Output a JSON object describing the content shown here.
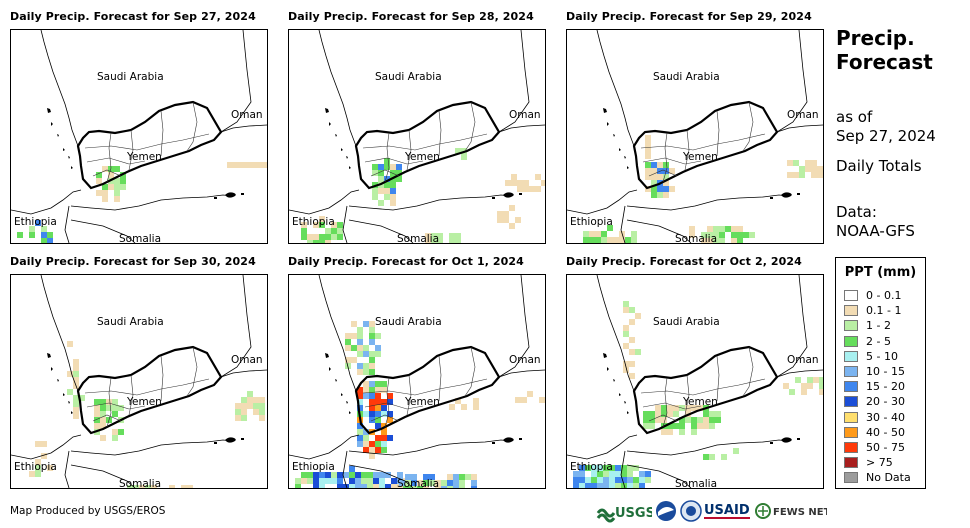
{
  "panels": [
    {
      "title": "Daily Precip. Forecast for Sep 27, 2024"
    },
    {
      "title": "Daily Precip. Forecast for Sep 28, 2024"
    },
    {
      "title": "Daily Precip. Forecast for Sep 29, 2024"
    },
    {
      "title": "Daily Precip. Forecast for Sep 30, 2024"
    },
    {
      "title": "Daily Precip. Forecast for Oct 1, 2024"
    },
    {
      "title": "Daily Precip. Forecast for Oct 2, 2024"
    }
  ],
  "map_labels": {
    "saudi": "Saudi Arabia",
    "oman": "Oman",
    "yemen": "Yemen",
    "ethiopia": "Ethiopia",
    "somalia": "Somalia"
  },
  "side": {
    "title_line1": "Precip.",
    "title_line2": "Forecast",
    "asof": "as of",
    "date": "Sep 27, 2024",
    "totals": "Daily Totals",
    "data_label": "Data:",
    "data_source": "NOAA-GFS"
  },
  "legend": {
    "title": "PPT (mm)",
    "items": [
      {
        "label": "0 - 0.1",
        "color": "#ffffff"
      },
      {
        "label": "0.1 - 1",
        "color": "#f2dcb4"
      },
      {
        "label": "1 - 2",
        "color": "#b9efa4"
      },
      {
        "label": "2 - 5",
        "color": "#66dd5c"
      },
      {
        "label": "5 - 10",
        "color": "#a8f0f0"
      },
      {
        "label": "10 - 15",
        "color": "#7bb4f0"
      },
      {
        "label": "15 - 20",
        "color": "#3f86ee"
      },
      {
        "label": "20 - 30",
        "color": "#1b4ed6"
      },
      {
        "label": "30 - 40",
        "color": "#ffdf6e"
      },
      {
        "label": "40 - 50",
        "color": "#ff9a1a"
      },
      {
        "label": "50 - 75",
        "color": "#ff3a0a"
      },
      {
        "label": "> 75",
        "color": "#a81e1e"
      },
      {
        "label": "No Data",
        "color": "#9c9c9c"
      }
    ]
  },
  "footer": {
    "credit": "Map Produced by USGS/EROS"
  },
  "logos": {
    "usgs": "USGS",
    "usaid": "USAID",
    "fews": "FEWS NET"
  }
}
